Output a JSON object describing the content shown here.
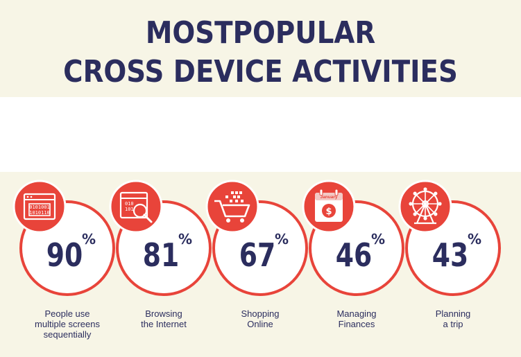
{
  "title": {
    "line1": "MOSTPOPULAR",
    "line2": "CROSS DEVICE ACTIVITIES"
  },
  "colors": {
    "accent": "#e8443a",
    "navy": "#2b2d5e",
    "background": "#f7f5e6"
  },
  "chart_data": {
    "type": "bar",
    "unit": "%",
    "categories": [
      "People use multiple screens sequentially",
      "Browsing the Internet",
      "Shopping Online",
      "Managing Finances",
      "Planning a trip"
    ],
    "label_lines": [
      [
        "People use",
        "multiple screens",
        "sequentially"
      ],
      [
        "Browsing",
        "the Internet"
      ],
      [
        "Shopping",
        "Online"
      ],
      [
        "Managing",
        "Finances"
      ],
      [
        "Planning",
        "a trip"
      ]
    ],
    "values": [
      90,
      81,
      67,
      46,
      43
    ],
    "icons": [
      "binary-screen-icon",
      "browser-search-icon",
      "shopping-cart-icon",
      "calendar-money-icon",
      "ferris-wheel-icon"
    ],
    "calendar_month": "January"
  }
}
